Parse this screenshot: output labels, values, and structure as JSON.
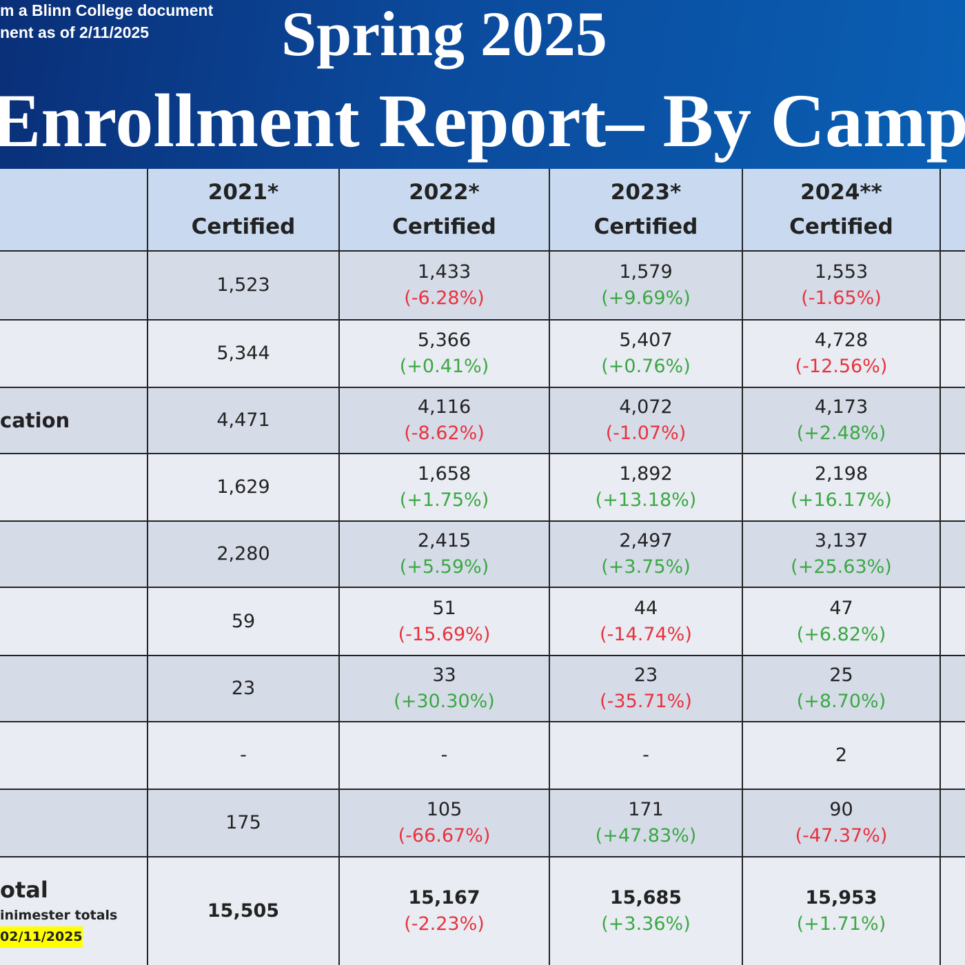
{
  "header": {
    "note_lines": [
      "m a Blinn College document",
      "nent as of 2/11/2025"
    ],
    "title_lines": [
      "Spring 2025",
      "Enrollment Report– By Campus"
    ]
  },
  "table": {
    "colors": {
      "increase": "#3aa843",
      "decrease": "#e8323c"
    },
    "columns": [
      {
        "year": "2021*",
        "status": "Certified"
      },
      {
        "year": "2022*",
        "status": "Certified"
      },
      {
        "year": "2023*",
        "status": "Certified"
      },
      {
        "year": "2024**",
        "status": "Certified"
      }
    ],
    "rows": [
      {
        "cells": [
          {
            "value": "1,523"
          },
          {
            "value": "1,433",
            "change": "(-6.28%)"
          },
          {
            "value": "1,579",
            "change": "(+9.69%)"
          },
          {
            "value": "1,553",
            "change": "(-1.65%)"
          }
        ]
      },
      {
        "cells": [
          {
            "value": "5,344"
          },
          {
            "value": "5,366",
            "change": "(+0.41%)"
          },
          {
            "value": "5,407",
            "change": "(+0.76%)"
          },
          {
            "value": "4,728",
            "change": "(-12.56%)"
          }
        ]
      },
      {
        "label": "cation",
        "cells": [
          {
            "value": "4,471"
          },
          {
            "value": "4,116",
            "change": "(-8.62%)"
          },
          {
            "value": "4,072",
            "change": "(-1.07%)"
          },
          {
            "value": "4,173",
            "change": "(+2.48%)"
          }
        ]
      },
      {
        "cells": [
          {
            "value": "1,629"
          },
          {
            "value": "1,658",
            "change": "(+1.75%)"
          },
          {
            "value": "1,892",
            "change": "(+13.18%)"
          },
          {
            "value": "2,198",
            "change": "(+16.17%)"
          }
        ]
      },
      {
        "cells": [
          {
            "value": "2,280"
          },
          {
            "value": "2,415",
            "change": "(+5.59%)"
          },
          {
            "value": "2,497",
            "change": "(+3.75%)"
          },
          {
            "value": "3,137",
            "change": "(+25.63%)"
          }
        ]
      },
      {
        "cells": [
          {
            "value": "59"
          },
          {
            "value": "51",
            "change": "(-15.69%)"
          },
          {
            "value": "44",
            "change": "(-14.74%)"
          },
          {
            "value": "47",
            "change": "(+6.82%)"
          }
        ]
      },
      {
        "cells": [
          {
            "value": "23"
          },
          {
            "value": "33",
            "change": "(+30.30%)"
          },
          {
            "value": "23",
            "change": "(-35.71%)"
          },
          {
            "value": "25",
            "change": "(+8.70%)"
          }
        ]
      },
      {
        "cells": [
          {
            "value": "-"
          },
          {
            "value": "-"
          },
          {
            "value": "-"
          },
          {
            "value": "2"
          }
        ]
      },
      {
        "cells": [
          {
            "value": "175"
          },
          {
            "value": "105",
            "change": "(-66.67%)"
          },
          {
            "value": "171",
            "change": "(+47.83%)"
          },
          {
            "value": "90",
            "change": "(-47.37%)"
          }
        ]
      },
      {
        "label": "otal",
        "notes": [
          "inimester totals",
          "02/11/2025"
        ],
        "cells": [
          {
            "value": "15,505"
          },
          {
            "value": "15,167",
            "change": "(-2.23%)"
          },
          {
            "value": "15,685",
            "change": "(+3.36%)"
          },
          {
            "value": "15,953",
            "change": "(+1.71%)"
          }
        ]
      }
    ]
  }
}
